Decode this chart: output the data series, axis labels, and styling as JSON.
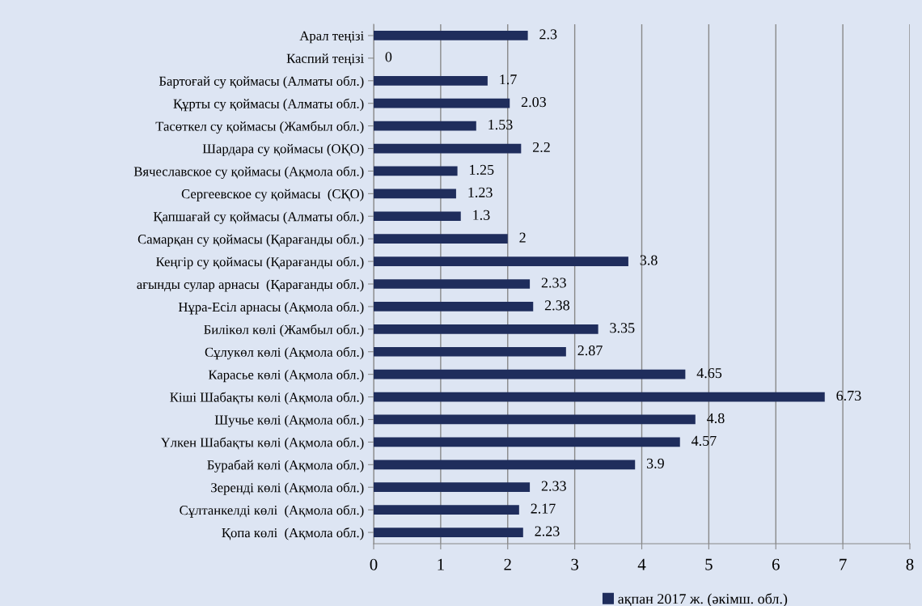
{
  "chart_data": {
    "type": "bar",
    "orientation": "horizontal",
    "categories": [
      "Арал теңізі",
      "Каспий теңізі",
      "Бартоғай су қоймасы (Алматы обл.)",
      "Құрты су қоймасы (Алматы обл.)",
      "Тасөткел су қоймасы (Жамбыл обл.)",
      "Шардара су қоймасы (ОҚО)",
      "Вячеславское су қоймасы (Ақмола обл.)",
      "Сергеевское су қоймасы  (СҚО)",
      "Қапшағай су қоймасы (Алматы обл.)",
      "Самарқан су қоймасы (Қарағанды обл.)",
      "Кеңгір су қоймасы (Қарағанды обл.)",
      "ағынды сулар арнасы  (Қарағанды обл.)",
      "Нұра-Есіл арнасы (Ақмола обл.)",
      "Билікөл көлі (Жамбыл обл.)",
      "Сұлукөл көлі (Ақмола обл.)",
      "Карасье көлі (Ақмола обл.)",
      "Кіші Шабақты көлі (Ақмола обл.)",
      "Шучье көлі (Ақмола обл.)",
      "Үлкен Шабақты көлі (Ақмола обл.)",
      "Бурабай көлі (Ақмола обл.)",
      "Зеренді көлі (Ақмола обл.)",
      "Сұлтанкелді көлі  (Ақмола обл.)",
      "Қопа көлі  (Ақмола обл.)"
    ],
    "series": [
      {
        "name": "ақпан 2017 ж. (әкімш. обл.)",
        "color": "#1f2d5c",
        "values": [
          2.3,
          0,
          1.7,
          2.03,
          1.53,
          2.2,
          1.25,
          1.23,
          1.3,
          2,
          3.8,
          2.33,
          2.38,
          3.35,
          2.87,
          4.65,
          6.73,
          4.8,
          4.57,
          3.9,
          2.33,
          2.17,
          2.23
        ]
      }
    ],
    "xlim": [
      0,
      8
    ],
    "xticks": [
      0,
      1,
      2,
      3,
      4,
      5,
      6,
      7,
      8
    ],
    "grid": "x",
    "legend": "bottom",
    "data_labels": true
  }
}
